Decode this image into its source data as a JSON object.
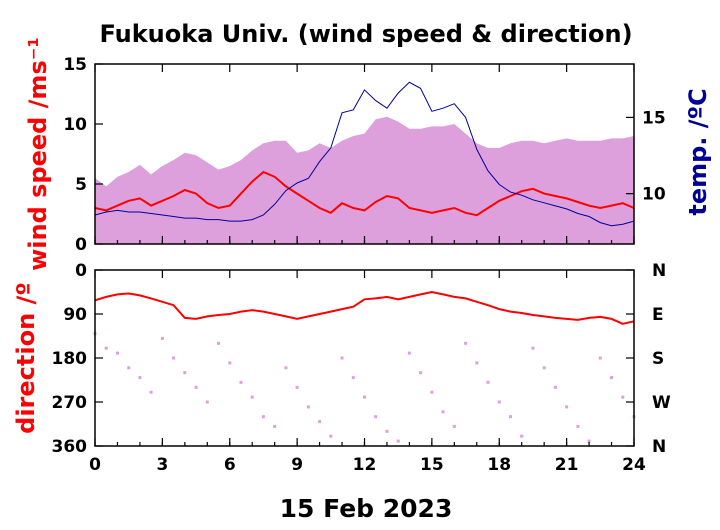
{
  "chart_data": [
    {
      "type": "line",
      "title": "Fukuoka Univ. (wind speed & direction)",
      "xlabel": "",
      "ylabel": "wind speed /ms⁻¹",
      "y2label": "temp. /ºC",
      "xlim": [
        0,
        24
      ],
      "ylim": [
        0,
        15
      ],
      "y2lim": [
        6.7,
        18.5
      ],
      "x_ticks": [
        0,
        3,
        6,
        9,
        12,
        15,
        18,
        21,
        24
      ],
      "y_ticks": [
        0,
        5,
        10,
        15
      ],
      "y2_ticks": [
        10,
        15
      ],
      "x": [
        0,
        0.5,
        1,
        1.5,
        2,
        2.5,
        3,
        3.5,
        4,
        4.5,
        5,
        5.5,
        6,
        6.5,
        7,
        7.5,
        8,
        8.5,
        9,
        9.5,
        10,
        10.5,
        11,
        11.5,
        12,
        12.5,
        13,
        13.5,
        14,
        14.5,
        15,
        15.5,
        16,
        16.5,
        17,
        17.5,
        18,
        18.5,
        19,
        19.5,
        20,
        20.5,
        21,
        21.5,
        22,
        22.5,
        23,
        23.5,
        24
      ],
      "series": [
        {
          "name": "",
          "axis": "left",
          "color": "#ff0000",
          "style": "line",
          "values": [
            3.0,
            2.8,
            3.2,
            3.6,
            3.8,
            3.2,
            3.6,
            4.0,
            4.5,
            4.2,
            3.4,
            3.0,
            3.2,
            4.2,
            5.2,
            6.0,
            5.6,
            4.8,
            4.2,
            3.6,
            3.0,
            2.6,
            3.4,
            3.0,
            2.8,
            3.5,
            4.0,
            3.8,
            3.0,
            2.8,
            2.6,
            2.8,
            3.0,
            2.6,
            2.4,
            3.0,
            3.6,
            4.0,
            4.4,
            4.6,
            4.2,
            4.0,
            3.8,
            3.5,
            3.2,
            3.0,
            3.2,
            3.4,
            3.0
          ]
        },
        {
          "name": "",
          "axis": "left",
          "color": "#dda0dd",
          "style": "envelope",
          "values": [
            5.5,
            4.8,
            5.6,
            6.0,
            6.6,
            5.8,
            6.5,
            7.0,
            7.6,
            7.4,
            6.8,
            6.2,
            6.5,
            7.0,
            7.8,
            8.4,
            8.6,
            8.6,
            7.6,
            7.8,
            8.4,
            8.0,
            8.6,
            9.0,
            9.2,
            10.4,
            10.6,
            10.2,
            9.6,
            9.6,
            9.8,
            9.8,
            10.0,
            9.2,
            8.4,
            8.0,
            8.0,
            8.4,
            8.6,
            8.6,
            8.4,
            8.6,
            8.8,
            8.6,
            8.6,
            8.6,
            8.8,
            8.8,
            9.0
          ]
        },
        {
          "name": "",
          "axis": "right",
          "color": "#000099",
          "style": "line",
          "values": [
            8.6,
            8.8,
            8.9,
            8.8,
            8.8,
            8.7,
            8.6,
            8.5,
            8.4,
            8.4,
            8.3,
            8.3,
            8.2,
            8.2,
            8.3,
            8.6,
            9.3,
            10.2,
            10.7,
            11.0,
            12.1,
            13.0,
            15.3,
            15.5,
            16.8,
            16.1,
            15.6,
            16.6,
            17.3,
            16.9,
            15.4,
            15.6,
            15.9,
            15.0,
            12.9,
            11.5,
            10.6,
            10.1,
            9.9,
            9.6,
            9.4,
            9.2,
            9.0,
            8.7,
            8.5,
            8.1,
            7.9,
            8.0,
            8.2
          ]
        }
      ]
    },
    {
      "type": "scatter",
      "xlabel": "15 Feb 2023",
      "ylabel": "direction /º",
      "xlim": [
        0,
        24
      ],
      "ylim": [
        0,
        360
      ],
      "y_inverted": true,
      "x_ticks": [
        0,
        3,
        6,
        9,
        12,
        15,
        18,
        21,
        24
      ],
      "y_ticks": [
        0,
        90,
        180,
        270,
        360
      ],
      "y2_ticklabels": [
        "N",
        "E",
        "S",
        "W",
        "N"
      ],
      "x": [
        0,
        0.5,
        1,
        1.5,
        2,
        2.5,
        3,
        3.5,
        4,
        4.5,
        5,
        5.5,
        6,
        6.5,
        7,
        7.5,
        8,
        8.5,
        9,
        9.5,
        10,
        10.5,
        11,
        11.5,
        12,
        12.5,
        13,
        13.5,
        14,
        14.5,
        15,
        15.5,
        16,
        16.5,
        17,
        17.5,
        18,
        18.5,
        19,
        19.5,
        20,
        20.5,
        21,
        21.5,
        22,
        22.5,
        23,
        23.5,
        24
      ],
      "series": [
        {
          "name": "",
          "color": "#ff0000",
          "style": "line",
          "values": [
            62,
            55,
            50,
            48,
            52,
            58,
            65,
            72,
            98,
            100,
            95,
            92,
            90,
            85,
            82,
            85,
            90,
            95,
            100,
            95,
            90,
            85,
            80,
            75,
            60,
            58,
            55,
            60,
            55,
            50,
            45,
            50,
            55,
            58,
            65,
            72,
            80,
            85,
            88,
            92,
            95,
            98,
            100,
            102,
            98,
            96,
            100,
            110,
            105
          ]
        },
        {
          "name": "",
          "color": "#dda0dd",
          "style": "scatter",
          "values": [
            130,
            160,
            170,
            200,
            220,
            250,
            140,
            180,
            210,
            240,
            270,
            150,
            190,
            230,
            260,
            300,
            320,
            200,
            240,
            280,
            310,
            340,
            180,
            220,
            260,
            300,
            330,
            350,
            170,
            210,
            250,
            290,
            320,
            150,
            190,
            230,
            270,
            300,
            340,
            160,
            200,
            240,
            280,
            320,
            350,
            180,
            220,
            260,
            300
          ]
        }
      ]
    }
  ]
}
